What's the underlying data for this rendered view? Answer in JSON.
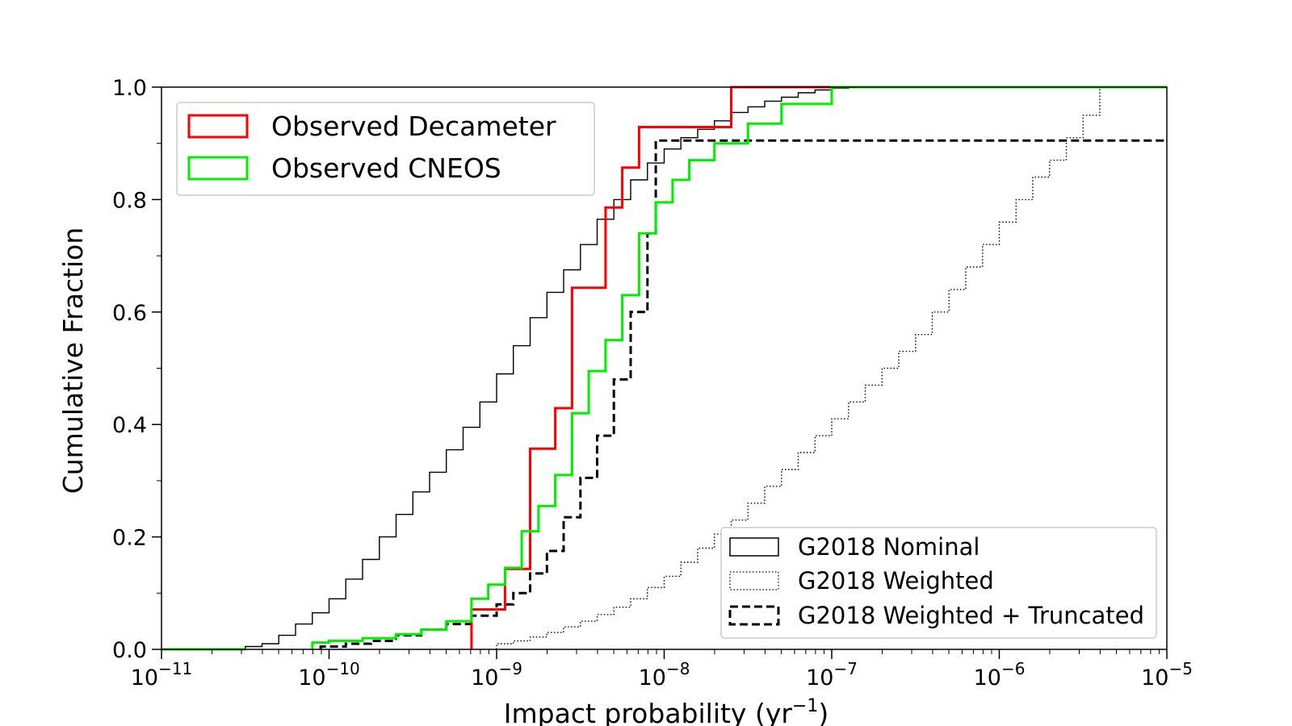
{
  "chart_data": {
    "type": "line",
    "subtype": "cumulative step histogram",
    "xlabel_base": "Impact probability (yr",
    "xlabel_exp": "−1",
    "xlabel_tail": ")",
    "ylabel": "Cumulative Fraction",
    "x_scale": "log",
    "xlim": [
      1e-11,
      1e-05
    ],
    "ylim": [
      0,
      1
    ],
    "x_ticks": [
      {
        "value": 1e-11,
        "base": "10",
        "exp": "−11"
      },
      {
        "value": 1e-10,
        "base": "10",
        "exp": "−10"
      },
      {
        "value": 1e-09,
        "base": "10",
        "exp": "−9"
      },
      {
        "value": 1e-08,
        "base": "10",
        "exp": "−8"
      },
      {
        "value": 1e-07,
        "base": "10",
        "exp": "−7"
      },
      {
        "value": 1e-06,
        "base": "10",
        "exp": "−6"
      },
      {
        "value": 1e-05,
        "base": "10",
        "exp": "−5"
      }
    ],
    "y_ticks": [
      {
        "value": 0.0,
        "label": "0.0"
      },
      {
        "value": 0.2,
        "label": "0.2"
      },
      {
        "value": 0.4,
        "label": "0.4"
      },
      {
        "value": 0.6,
        "label": "0.6"
      },
      {
        "value": 0.8,
        "label": "0.8"
      },
      {
        "value": 1.0,
        "label": "1.0"
      }
    ],
    "grid": false,
    "legends": [
      {
        "placement": "upper-left",
        "entries": [
          "Observed Decameter",
          "Observed CNEOS"
        ]
      },
      {
        "placement": "lower-right",
        "entries": [
          "G2018 Nominal",
          "G2018 Weighted",
          "G2018 Weighted + Truncated"
        ]
      }
    ],
    "series": [
      {
        "name": "G2018 Nominal",
        "color": "#000000",
        "style": "solid",
        "width": "thin",
        "x_log10": [
          -11,
          -10.5,
          -10.4,
          -10.3,
          -10.2,
          -10.1,
          -10,
          -9.9,
          -9.8,
          -9.7,
          -9.6,
          -9.5,
          -9.4,
          -9.3,
          -9.2,
          -9.1,
          -9,
          -8.9,
          -8.8,
          -8.7,
          -8.6,
          -8.5,
          -8.4,
          -8.3,
          -8.2,
          -8.1,
          -8,
          -7.9,
          -7.8,
          -7.7,
          -7.6,
          -7.5,
          -7.4,
          -7.3,
          -7.2,
          -7.1,
          -7,
          -6.9
        ],
        "y": [
          0,
          0.005,
          0.01,
          0.025,
          0.045,
          0.065,
          0.09,
          0.125,
          0.16,
          0.2,
          0.24,
          0.28,
          0.315,
          0.355,
          0.395,
          0.44,
          0.49,
          0.54,
          0.59,
          0.635,
          0.675,
          0.72,
          0.765,
          0.8,
          0.835,
          0.865,
          0.89,
          0.91,
          0.925,
          0.94,
          0.955,
          0.965,
          0.975,
          0.982,
          0.99,
          0.995,
          0.998,
          1.0
        ]
      },
      {
        "name": "G2018 Weighted",
        "color": "#000000",
        "style": "dotted",
        "width": "thin",
        "x_log10": [
          -9,
          -8.9,
          -8.8,
          -8.7,
          -8.6,
          -8.5,
          -8.4,
          -8.3,
          -8.2,
          -8.1,
          -8,
          -7.9,
          -7.8,
          -7.7,
          -7.6,
          -7.5,
          -7.4,
          -7.3,
          -7.2,
          -7.1,
          -7,
          -6.9,
          -6.8,
          -6.7,
          -6.6,
          -6.5,
          -6.4,
          -6.3,
          -6.2,
          -6.1,
          -6,
          -5.9,
          -5.8,
          -5.7,
          -5.6,
          -5.5,
          -5.4
        ],
        "y": [
          0.01,
          0.015,
          0.022,
          0.03,
          0.04,
          0.05,
          0.062,
          0.075,
          0.09,
          0.11,
          0.13,
          0.155,
          0.18,
          0.205,
          0.23,
          0.26,
          0.29,
          0.32,
          0.35,
          0.38,
          0.41,
          0.44,
          0.47,
          0.5,
          0.53,
          0.56,
          0.6,
          0.64,
          0.68,
          0.72,
          0.76,
          0.8,
          0.84,
          0.87,
          0.91,
          0.95,
          1.0
        ]
      },
      {
        "name": "G2018 Weighted + Truncated",
        "color": "#000000",
        "style": "dashed",
        "width": "thick",
        "x_log10": [
          -10.05,
          -9.9,
          -9.75,
          -9.6,
          -9.45,
          -9.3,
          -9.15,
          -9.0,
          -8.9,
          -8.8,
          -8.7,
          -8.6,
          -8.5,
          -8.4,
          -8.3,
          -8.2,
          -8.1,
          -8.05
        ],
        "y": [
          0.005,
          0.01,
          0.015,
          0.025,
          0.035,
          0.045,
          0.06,
          0.08,
          0.1,
          0.135,
          0.175,
          0.235,
          0.305,
          0.38,
          0.48,
          0.6,
          0.74,
          0.905
        ]
      },
      {
        "name": "Observed Decameter",
        "color": "#ff0000",
        "style": "solid",
        "width": "thick",
        "x_log10": [
          -9.15,
          -8.95,
          -8.8,
          -8.65,
          -8.55,
          -8.35,
          -8.25,
          -8.15,
          -8.05,
          -7.9,
          -7.6
        ],
        "y": [
          0.071,
          0.143,
          0.357,
          0.429,
          0.643,
          0.786,
          0.857,
          0.929,
          0.929,
          0.929,
          1.0
        ]
      },
      {
        "name": "Observed CNEOS",
        "color": "#00ee00",
        "style": "solid",
        "width": "thick",
        "x_log10": [
          -10.1,
          -10.0,
          -9.8,
          -9.6,
          -9.45,
          -9.3,
          -9.15,
          -9.05,
          -8.95,
          -8.85,
          -8.75,
          -8.65,
          -8.55,
          -8.45,
          -8.35,
          -8.25,
          -8.15,
          -8.05,
          -7.95,
          -7.85,
          -7.7,
          -7.5,
          -7.3,
          -7.0
        ],
        "y": [
          0.012,
          0.015,
          0.02,
          0.027,
          0.035,
          0.05,
          0.09,
          0.115,
          0.145,
          0.21,
          0.255,
          0.31,
          0.42,
          0.495,
          0.55,
          0.63,
          0.74,
          0.795,
          0.835,
          0.87,
          0.9,
          0.935,
          0.97,
          1.0
        ]
      }
    ]
  }
}
